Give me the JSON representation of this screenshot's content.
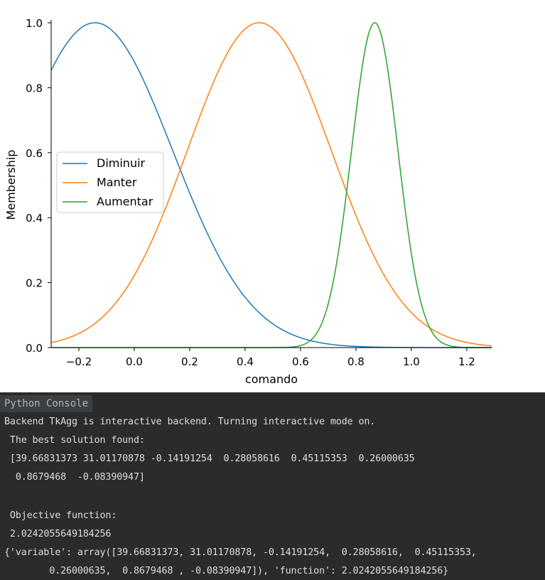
{
  "chart_data": {
    "type": "line",
    "xlabel": "comando",
    "ylabel": "Membership",
    "xlim": [
      -0.3,
      1.29
    ],
    "ylim": [
      0.0,
      1.0
    ],
    "x_ticks": [
      "−0.2",
      "0.0",
      "0.2",
      "0.4",
      "0.6",
      "0.8",
      "1.0",
      "1.2"
    ],
    "x_tick_values": [
      -0.2,
      0.0,
      0.2,
      0.4,
      0.6,
      0.8,
      1.0,
      1.2
    ],
    "y_ticks": [
      "0.0",
      "0.2",
      "0.4",
      "0.6",
      "0.8",
      "1.0"
    ],
    "y_tick_values": [
      0.0,
      0.2,
      0.4,
      0.6,
      0.8,
      1.0
    ],
    "legend_position": "center-left",
    "grid": false,
    "series": [
      {
        "name": "Diminuir",
        "color": "#1f77b4",
        "function": "gaussian",
        "mean": -0.14191254,
        "sigma": 0.28058616
      },
      {
        "name": "Manter",
        "color": "#ff7f0e",
        "function": "gaussian",
        "mean": 0.45115353,
        "sigma": 0.26000635
      },
      {
        "name": "Aumentar",
        "color": "#2ca02c",
        "function": "gaussian",
        "mean": 0.8679468,
        "sigma": -0.08390947
      }
    ]
  },
  "console": {
    "tab_label": "Python Console",
    "lines": [
      "Backend TkAgg is interactive backend. Turning interactive mode on.",
      " The best solution found:",
      " [39.66831373 31.01170878 -0.14191254  0.28058616  0.45115353  0.26000635",
      "  0.8679468  -0.08390947]",
      "",
      " Objective function:",
      " 2.0242055649184256",
      "{'variable': array([39.66831373, 31.01170878, -0.14191254,  0.28058616,  0.45115353,",
      "        0.26000635,  0.8679468 , -0.08390947]), 'function': 2.0242055649184256}"
    ]
  }
}
